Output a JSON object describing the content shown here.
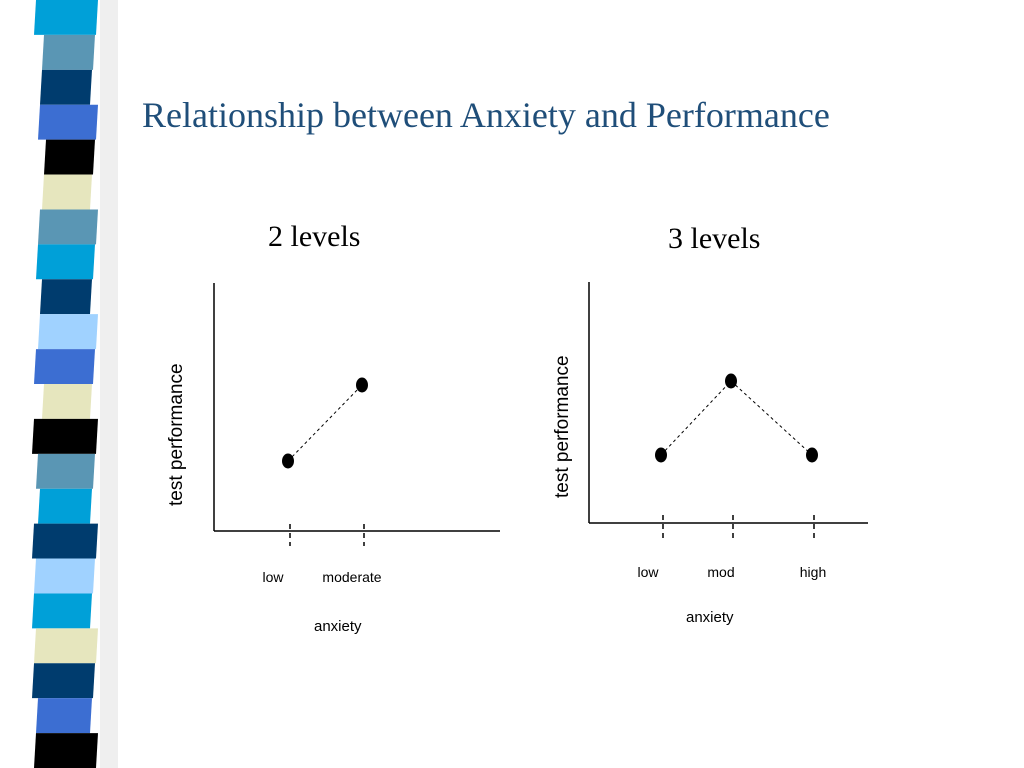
{
  "slide": {
    "title": "Relationship between Anxiety and Performance",
    "stripe_colors": [
      "#00a0d8",
      "#5a96b4",
      "#003c6e",
      "#3c6ed2",
      "#000000",
      "#e6e6be",
      "#5a96b4",
      "#00a0d8",
      "#003c6e",
      "#a0d2ff",
      "#3c6ed2",
      "#e6e6be",
      "#000000",
      "#5a96b4",
      "#00a0d8",
      "#003c6e",
      "#a0d2ff",
      "#00a0d8",
      "#e6e6be",
      "#003c6e",
      "#3c6ed2",
      "#000000"
    ]
  },
  "chart_data": [
    {
      "type": "line",
      "title": "2 levels",
      "xlabel": "anxiety",
      "ylabel": "test performance",
      "categories": [
        "low",
        "moderate"
      ],
      "values": [
        1,
        2
      ],
      "ylim": [
        0,
        3
      ],
      "line_style": "dashed",
      "marker": "filled-circle"
    },
    {
      "type": "line",
      "title": "3 levels",
      "xlabel": "anxiety",
      "ylabel": "test performance",
      "categories": [
        "low",
        "mod",
        "high"
      ],
      "values": [
        1,
        2,
        1
      ],
      "ylim": [
        0,
        3
      ],
      "line_style": "dashed",
      "marker": "filled-circle"
    }
  ]
}
